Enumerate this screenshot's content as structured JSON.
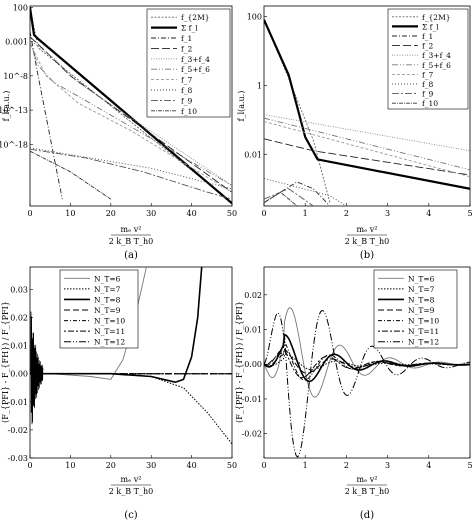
{
  "chart_data": [
    {
      "panel": "(a)",
      "type": "line",
      "yscale": "log",
      "xlim": [
        0,
        50
      ],
      "ylim_log10": [
        -27,
        2.2
      ],
      "xticks": [
        "0",
        "10",
        "20",
        "30",
        "40",
        "50"
      ],
      "yticks": [
        {
          "label": "100",
          "log10": 2
        },
        {
          "label": "0.001",
          "log10": -3
        },
        {
          "label": "10^-8",
          "log10": -8
        },
        {
          "label": "10^-13",
          "log10": -13
        },
        {
          "label": "10^-18",
          "log10": -18
        }
      ],
      "ylabel": "f_l(a.u.)",
      "xlabel": "m_e v^2 / 2 k_B T_h0",
      "legend": [
        "f_{2M}",
        "Σ f_l",
        "f_1",
        "f_2",
        "f_3+f_4",
        "f_5+f_6",
        "f_7",
        "f_8",
        "f_9",
        "f_10"
      ],
      "series": [
        {
          "name": "f_{2M}",
          "x": [
            0,
            2,
            50
          ],
          "log10y": [
            2,
            -3.9,
            -26.5
          ]
        },
        {
          "name": "Σ f_l",
          "x": [
            0,
            1,
            2,
            50
          ],
          "log10y": [
            2,
            -2.0,
            -2.6,
            -26.6
          ]
        },
        {
          "name": "f_1",
          "x": [
            0,
            2,
            4,
            6,
            8
          ],
          "log10y": [
            -1.5,
            -8,
            -14,
            -20,
            -26
          ]
        },
        {
          "name": "f_2",
          "x": [
            0,
            4,
            10,
            50
          ],
          "log10y": [
            -2.3,
            -4.5,
            -8,
            -25
          ]
        },
        {
          "name": "f_3+f_4",
          "x": [
            0,
            6,
            12,
            50
          ],
          "log10y": [
            -2.8,
            -5.5,
            -9,
            -24
          ]
        },
        {
          "name": "f_5+f_6",
          "x": [
            0,
            2,
            6,
            12,
            50
          ],
          "log10y": [
            -3,
            -6.5,
            -9,
            -11,
            -24
          ]
        },
        {
          "name": "f_7",
          "x": [
            0,
            4,
            12,
            25,
            50
          ],
          "log10y": [
            -3.3,
            -8,
            -12,
            -16,
            -25
          ]
        },
        {
          "name": "f_8",
          "x": [
            0,
            10,
            30,
            50
          ],
          "log10y": [
            -18.5,
            -19.5,
            -21.5,
            -24.5
          ]
        },
        {
          "name": "f_9",
          "x": [
            0,
            14,
            28,
            44,
            50
          ],
          "log10y": [
            -18.7,
            -20,
            -22,
            -25,
            -26
          ]
        },
        {
          "name": "f_10",
          "x": [
            0,
            10,
            20
          ],
          "log10y": [
            -19,
            -22,
            -26
          ]
        }
      ]
    },
    {
      "panel": "(b)",
      "type": "line",
      "yscale": "log",
      "xlim": [
        0,
        5
      ],
      "ylim_log10": [
        -3.5,
        2.3
      ],
      "xticks": [
        "0",
        "1",
        "2",
        "3",
        "4",
        "5"
      ],
      "yticks": [
        {
          "label": "100",
          "log10": 2
        },
        {
          "label": "1",
          "log10": 0
        },
        {
          "label": "0.01",
          "log10": -2
        }
      ],
      "ylabel": "f_l(a.u.)",
      "xlabel": "m_e v^2 / 2 k_B T_h0",
      "legend": [
        "f_{2M}",
        "Σ f_l",
        "f_1",
        "f_2",
        "f_3+f_4",
        "f_5+f_6",
        "f_7",
        "f_8",
        "f_9",
        "f_10"
      ],
      "series": [
        {
          "name": "f_{2M}",
          "x": [
            0,
            0.6,
            1.2,
            1.6
          ],
          "log10y": [
            1.9,
            0.2,
            -1.6,
            -3.4
          ]
        },
        {
          "name": "Σ f_l",
          "x": [
            0,
            0.6,
            1.0,
            1.3,
            5
          ],
          "log10y": [
            1.9,
            0.3,
            -1.5,
            -2.15,
            -3.0
          ]
        },
        {
          "name": "f_1",
          "x": [
            0,
            0.8,
            1.2,
            1.6
          ],
          "log10y": [
            -3.4,
            -2.8,
            -3.0,
            -3.5
          ]
        },
        {
          "name": "f_2",
          "x": [
            0,
            1.2,
            5
          ],
          "log10y": [
            -1.55,
            -1.9,
            -2.6
          ]
        },
        {
          "name": "f_3+f_4",
          "x": [
            0,
            5
          ],
          "log10y": [
            -0.85,
            -1.9
          ]
        },
        {
          "name": "f_5+f_6",
          "x": [
            0,
            5
          ],
          "log10y": [
            -0.95,
            -2.45
          ]
        },
        {
          "name": "f_7",
          "x": [
            0,
            5
          ],
          "log10y": [
            -1.05,
            -2.65
          ]
        },
        {
          "name": "f_8",
          "x": [
            0,
            1.6,
            2.0
          ],
          "log10y": [
            -2.7,
            -3.2,
            -3.5
          ]
        },
        {
          "name": "f_9",
          "x": [
            0,
            0.6,
            1.2
          ],
          "log10y": [
            -3.3,
            -3.0,
            -3.5
          ]
        },
        {
          "name": "f_10",
          "x": [
            0,
            0.4,
            0.8
          ],
          "log10y": [
            -3.4,
            -3.1,
            -3.5
          ]
        }
      ]
    },
    {
      "panel": "(c)",
      "type": "line",
      "xlim": [
        0,
        50
      ],
      "ylim": [
        -0.03,
        0.038
      ],
      "xticks": [
        "0",
        "10",
        "20",
        "30",
        "40",
        "50"
      ],
      "yticks": [
        "0.03",
        "0.02",
        "0.01",
        "0.00",
        "-0.01",
        "-0.02",
        "-0.03"
      ],
      "ylabel": "(F_{PFI} - F_{FH}) / F_{PFI}",
      "xlabel": "m_e v^2 / 2 k_B T_h0",
      "legend": [
        "N_T=6",
        "N_T=7",
        "N_T=8",
        "N_T=9",
        "N_T=10",
        "N_T=11",
        "N_T=12"
      ],
      "series": [
        {
          "name": "N_T=6",
          "x": [
            0,
            5,
            15,
            20,
            23,
            26,
            28.8
          ],
          "y": [
            0,
            0,
            -0.001,
            -0.002,
            0.005,
            0.02,
            0.038
          ]
        },
        {
          "name": "N_T=7",
          "x": [
            0,
            20,
            30,
            38,
            44,
            50
          ],
          "y": [
            0,
            0,
            -0.001,
            -0.005,
            -0.014,
            -0.025
          ]
        },
        {
          "name": "N_T=8",
          "x": [
            0,
            20,
            30,
            36,
            38,
            40,
            41.5,
            42.5
          ],
          "y": [
            0,
            0,
            -0.001,
            -0.003,
            -0.002,
            0.006,
            0.02,
            0.038
          ]
        },
        {
          "name": "N_T=9",
          "x": [
            0,
            50
          ],
          "y": [
            0,
            0
          ]
        },
        {
          "name": "N_T=10",
          "x": [
            0,
            50
          ],
          "y": [
            0,
            0
          ]
        },
        {
          "name": "N_T=11",
          "x": [
            0,
            50
          ],
          "y": [
            0,
            0
          ]
        },
        {
          "name": "N_T=12",
          "x": [
            0,
            50
          ],
          "y": [
            0,
            0
          ]
        }
      ]
    },
    {
      "panel": "(d)",
      "type": "line",
      "xlim": [
        0,
        5
      ],
      "ylim": [
        -0.027,
        0.028
      ],
      "xticks": [
        "0",
        "1",
        "2",
        "3",
        "4",
        "5"
      ],
      "yticks": [
        "0.02",
        "0.01",
        "0.00",
        "-0.01",
        "-0.02"
      ],
      "ylabel": "(F_{PFI} - F_{FH}) / F_{PFI}",
      "xlabel": "m_e v^2 / 2 k_B T_h0",
      "legend": [
        "N_T=6",
        "N_T=7",
        "N_T=8",
        "N_T=9",
        "N_T=10",
        "N_T=11",
        "N_T=12"
      ],
      "series": [
        {
          "name": "N_T=6",
          "amp": 0.013,
          "phase": 0.2
        },
        {
          "name": "N_T=7",
          "amp": 0.002,
          "phase": 0.6
        },
        {
          "name": "N_T=8",
          "amp": 0.006,
          "phase": 0.9
        },
        {
          "name": "N_T=9",
          "amp": 0.003,
          "phase": 1.2
        },
        {
          "name": "N_T=10",
          "amp": 0.005,
          "phase": 1.5
        },
        {
          "name": "N_T=11",
          "amp": 0.004,
          "phase": 1.8
        },
        {
          "name": "N_T=12",
          "amp": 0.025,
          "phase": 2.4
        }
      ]
    }
  ],
  "captions": [
    "(a)",
    "(b)",
    "(c)",
    "(d)"
  ]
}
